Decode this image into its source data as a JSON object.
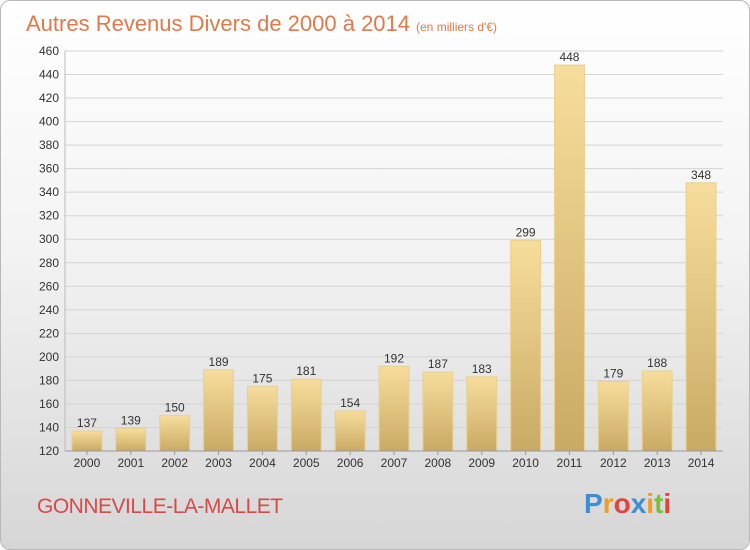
{
  "header": {
    "title": "Autres Revenus Divers de 2000 à 2014",
    "subtitle": "(en milliers d'€)"
  },
  "footer": {
    "commune": "GONNEVILLE-LA-MALLET",
    "logo": "Proxiti"
  },
  "colors": {
    "title": "#e07a4a",
    "commune": "#d64a4a",
    "bar_light": "#f7dd9c",
    "bar_dark": "#c9aa64",
    "logo": [
      "#3b8fd6",
      "#f39c1e",
      "#e2433b",
      "#3b8fd6",
      "#f39c1e",
      "#7bbf3a",
      "#e2433b"
    ]
  },
  "chart_data": {
    "type": "bar",
    "title": "Autres Revenus Divers de 2000 à 2014",
    "subtitle": "(en milliers d'€)",
    "xlabel": "",
    "ylabel": "",
    "categories": [
      "2000",
      "2001",
      "2002",
      "2003",
      "2004",
      "2005",
      "2006",
      "2007",
      "2008",
      "2009",
      "2010",
      "2011",
      "2012",
      "2013",
      "2014"
    ],
    "values": [
      137,
      139,
      150,
      189,
      175,
      181,
      154,
      192,
      187,
      183,
      299,
      448,
      179,
      188,
      348
    ],
    "ylim": [
      120,
      460
    ],
    "yticks": [
      120,
      140,
      160,
      180,
      200,
      220,
      240,
      260,
      280,
      300,
      320,
      340,
      360,
      380,
      400,
      420,
      440,
      460
    ],
    "grid": true,
    "legend": "none"
  }
}
